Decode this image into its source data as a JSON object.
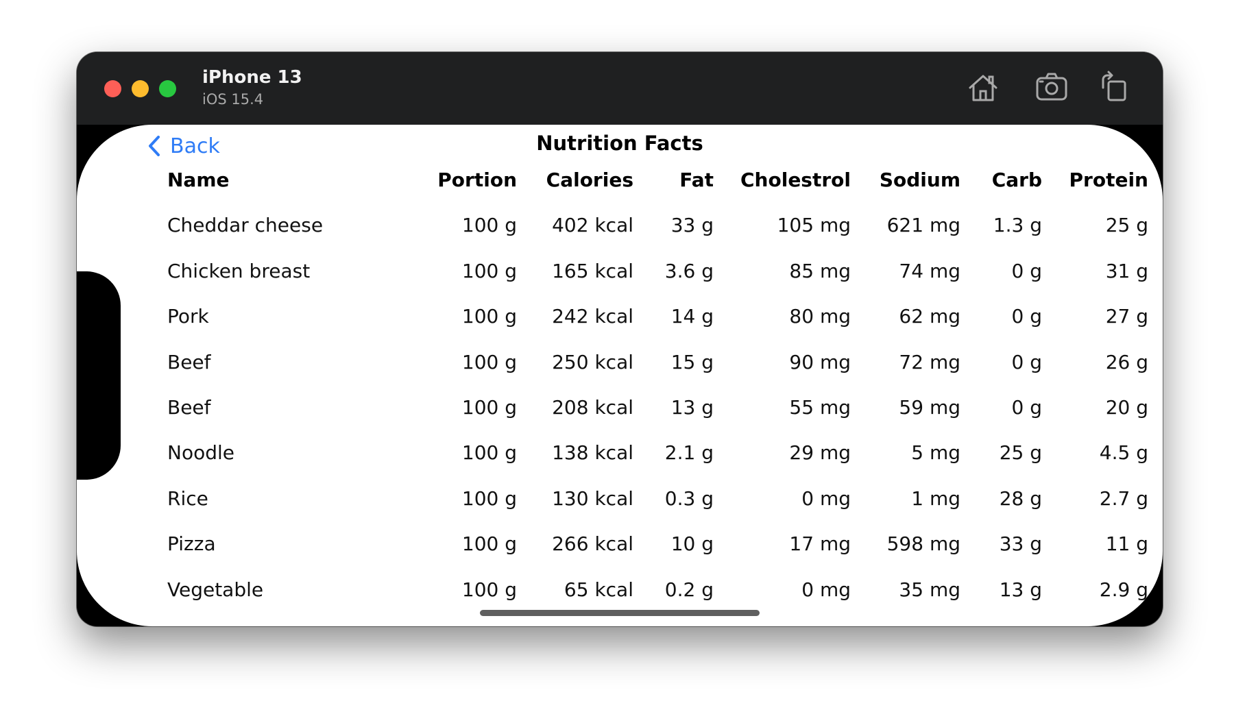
{
  "window": {
    "device_name": "iPhone 13",
    "os_version": "iOS 15.4",
    "toolbar": {
      "home_icon": "home-icon",
      "screenshot_icon": "camera-icon",
      "rotate_icon": "rotate-icon"
    }
  },
  "nav": {
    "back_label": "Back",
    "title": "Nutrition Facts"
  },
  "table": {
    "columns": [
      "Name",
      "Portion",
      "Calories",
      "Fat",
      "Cholestrol",
      "Sodium",
      "Carb",
      "Protein"
    ],
    "rows": [
      [
        "Cheddar cheese",
        "100 g",
        "402 kcal",
        "33 g",
        "105 mg",
        "621 mg",
        "1.3 g",
        "25 g"
      ],
      [
        "Chicken breast",
        "100 g",
        "165 kcal",
        "3.6 g",
        "85 mg",
        "74 mg",
        "0 g",
        "31 g"
      ],
      [
        "Pork",
        "100 g",
        "242 kcal",
        "14 g",
        "80 mg",
        "62 mg",
        "0 g",
        "27 g"
      ],
      [
        "Beef",
        "100 g",
        "250 kcal",
        "15 g",
        "90 mg",
        "72 mg",
        "0 g",
        "26 g"
      ],
      [
        "Beef",
        "100 g",
        "208 kcal",
        "13 g",
        "55 mg",
        "59 mg",
        "0 g",
        "20 g"
      ],
      [
        "Noodle",
        "100 g",
        "138 kcal",
        "2.1 g",
        "29 mg",
        "5 mg",
        "25 g",
        "4.5 g"
      ],
      [
        "Rice",
        "100 g",
        "130 kcal",
        "0.3 g",
        "0 mg",
        "1 mg",
        "28 g",
        "2.7 g"
      ],
      [
        "Pizza",
        "100 g",
        "266 kcal",
        "10 g",
        "17 mg",
        "598 mg",
        "33 g",
        "11 g"
      ],
      [
        "Vegetable",
        "100 g",
        "65 kcal",
        "0.2 g",
        "0 mg",
        "35 mg",
        "13 g",
        "2.9 g"
      ]
    ]
  },
  "colors": {
    "accent": "#2f7cf6",
    "titlebar": "#1f2021",
    "close": "#fe5f57",
    "minimize": "#febc2e",
    "zoom": "#28c840"
  }
}
